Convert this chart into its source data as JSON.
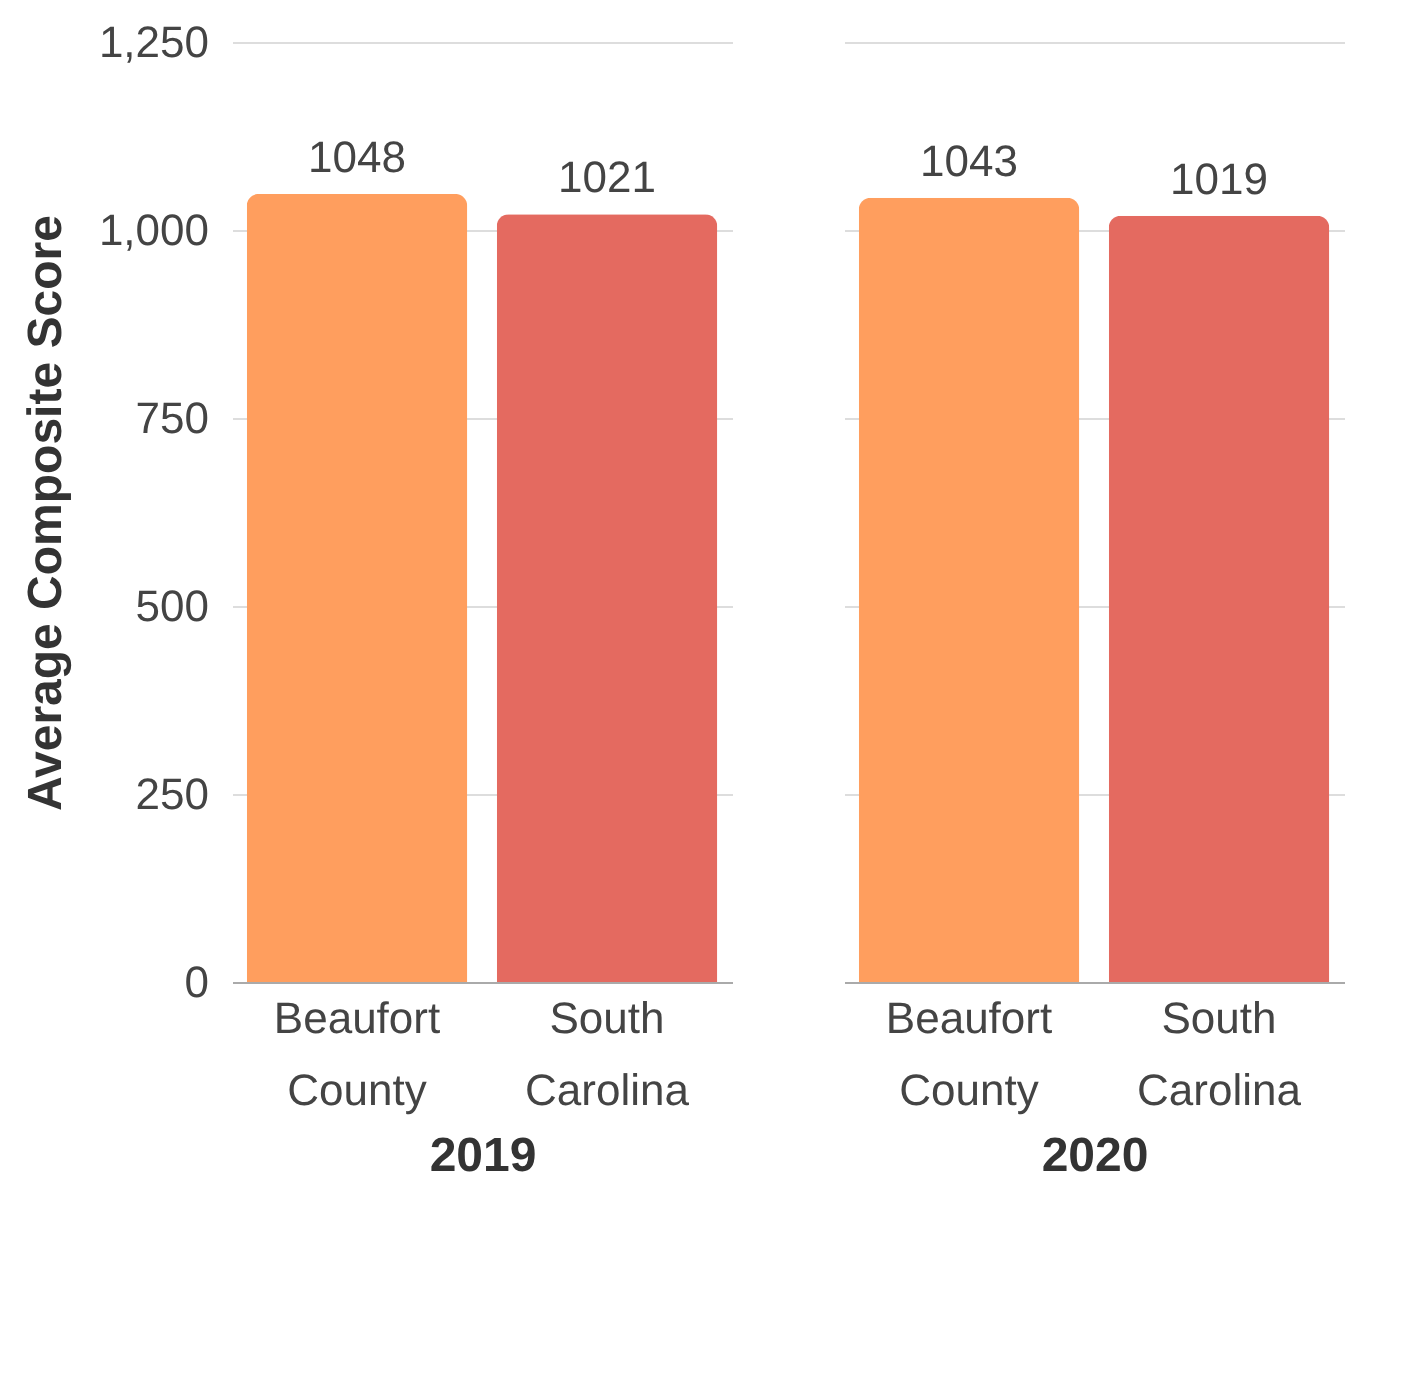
{
  "chart_data": [
    {
      "type": "bar",
      "categories": [
        "Beaufort County",
        "South Carolina"
      ],
      "values": [
        1048,
        1021
      ],
      "colors": [
        "#ff9e5e",
        "#e46a60"
      ],
      "xlabel": "2019",
      "ylabel": "Average Composite Score",
      "ylim": [
        0,
        1250
      ],
      "yticks": [
        0,
        250,
        500,
        750,
        {
          "value": 1000,
          "label": "1,000"
        },
        {
          "value": 1250,
          "label": "1,250"
        }
      ],
      "grid": "y",
      "data_labels": true
    },
    {
      "type": "bar",
      "categories": [
        "Beaufort County",
        "South Carolina"
      ],
      "values": [
        1043,
        1019
      ],
      "colors": [
        "#ff9e5e",
        "#e46a60"
      ],
      "xlabel": "2020",
      "ylim": [
        0,
        1250
      ],
      "yticks": [
        0,
        250,
        500,
        750,
        1000,
        1250
      ],
      "grid": "y",
      "data_labels": true,
      "tick_labels": "x"
    }
  ]
}
